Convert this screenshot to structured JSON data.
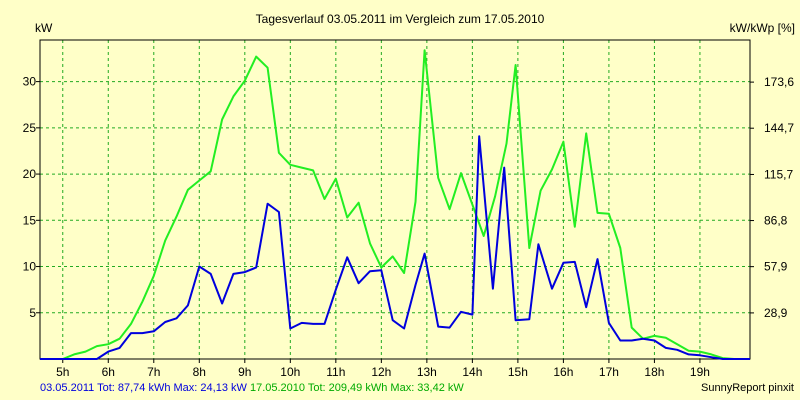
{
  "chart_data": {
    "type": "line",
    "title": "Tagesverlauf 03.05.2011 im Vergleich zum 17.05.2010",
    "ylabel_left": "kW",
    "ylabel_right": "kW/kWp [%]",
    "ylim": [
      0,
      34.5
    ],
    "right_ylim": [
      0,
      200.0
    ],
    "xlim": [
      4.5,
      20.1
    ],
    "x_ticks": [
      5,
      6,
      7,
      8,
      9,
      10,
      11,
      12,
      13,
      14,
      15,
      16,
      17,
      18,
      19
    ],
    "x_tick_labels": [
      "5h",
      "6h",
      "7h",
      "8h",
      "9h",
      "10h",
      "11h",
      "12h",
      "13h",
      "14h",
      "15h",
      "16h",
      "17h",
      "18h",
      "19h"
    ],
    "y_ticks": [
      5,
      10,
      15,
      20,
      25,
      30
    ],
    "y_tick_labels": [
      "5",
      "10",
      "15",
      "20",
      "25",
      "30"
    ],
    "y_right_ticks": [
      28.9,
      57.9,
      86.8,
      115.7,
      144.7,
      173.6
    ],
    "y_right_tick_labels": [
      "28,9",
      "57,9",
      "86,8",
      "115,7",
      "144,7",
      "173,6"
    ],
    "grid": true,
    "series": [
      {
        "name": "17.05.2010",
        "color": "#22ee22",
        "x": [
          4.5,
          5.0,
          5.25,
          5.5,
          5.75,
          6.0,
          6.25,
          6.5,
          6.75,
          7.0,
          7.25,
          7.5,
          7.75,
          8.0,
          8.25,
          8.5,
          8.75,
          9.0,
          9.25,
          9.5,
          9.75,
          10.0,
          10.25,
          10.5,
          10.75,
          11.0,
          11.25,
          11.5,
          11.75,
          12.0,
          12.25,
          12.5,
          12.75,
          12.95,
          13.25,
          13.5,
          13.75,
          14.0,
          14.25,
          14.5,
          14.75,
          14.95,
          15.25,
          15.5,
          15.75,
          16.0,
          16.25,
          16.5,
          16.75,
          17.0,
          17.25,
          17.5,
          17.75,
          18.0,
          18.25,
          18.5,
          18.75,
          19.0,
          19.25,
          19.5,
          19.75,
          20.1
        ],
        "values": [
          0,
          0,
          0.5,
          0.8,
          1.4,
          1.6,
          2.2,
          3.8,
          6.2,
          9.0,
          12.8,
          15.4,
          18.3,
          19.3,
          20.3,
          25.9,
          28.4,
          30.1,
          32.7,
          31.5,
          22.3,
          21.0,
          20.7,
          20.4,
          17.3,
          19.5,
          15.3,
          16.9,
          12.5,
          9.9,
          11.1,
          9.3,
          17.0,
          33.4,
          19.6,
          16.2,
          20.1,
          16.7,
          13.3,
          17.6,
          23.3,
          31.8,
          12.0,
          18.2,
          20.5,
          23.5,
          14.3,
          24.4,
          15.8,
          15.7,
          12.0,
          3.4,
          2.2,
          2.5,
          2.3,
          1.6,
          0.9,
          0.8,
          0.5,
          0.1,
          0,
          0
        ]
      },
      {
        "name": "03.05.2011",
        "color": "#0000dd",
        "x": [
          4.5,
          5.25,
          5.75,
          6.0,
          6.25,
          6.5,
          6.75,
          7.0,
          7.25,
          7.5,
          7.75,
          8.0,
          8.25,
          8.5,
          8.75,
          9.0,
          9.25,
          9.5,
          9.75,
          10.0,
          10.25,
          10.5,
          10.75,
          11.0,
          11.25,
          11.5,
          11.75,
          12.0,
          12.25,
          12.5,
          12.75,
          12.95,
          13.25,
          13.5,
          13.75,
          14.0,
          14.15,
          14.45,
          14.7,
          14.95,
          15.25,
          15.45,
          15.75,
          16.0,
          16.25,
          16.5,
          16.75,
          17.0,
          17.25,
          17.5,
          17.75,
          18.0,
          18.25,
          18.5,
          18.75,
          19.0,
          19.25,
          19.5,
          19.75,
          20.1
        ],
        "values": [
          0,
          0,
          0,
          0.8,
          1.2,
          2.8,
          2.8,
          3.0,
          4.0,
          4.4,
          5.8,
          10.0,
          9.2,
          6.0,
          9.2,
          9.4,
          9.9,
          16.8,
          15.9,
          3.3,
          3.9,
          3.8,
          3.8,
          7.5,
          11.0,
          8.2,
          9.5,
          9.6,
          4.2,
          3.3,
          8.0,
          11.4,
          3.5,
          3.4,
          5.1,
          4.8,
          24.1,
          7.6,
          20.7,
          4.2,
          4.3,
          12.4,
          7.6,
          10.4,
          10.5,
          5.6,
          10.8,
          3.9,
          2.0,
          2.0,
          2.2,
          2.0,
          1.2,
          1.0,
          0.5,
          0.4,
          0.2,
          0,
          0,
          0
        ]
      }
    ]
  },
  "footer": {
    "series1_text": "03.05.2011 Tot: 87,74 kWh Max: 24,13 kW",
    "series2_text": "17.05.2010 Tot: 209,49 kWh Max: 33,42 kW",
    "credit": "SunnyReport pinxit"
  }
}
